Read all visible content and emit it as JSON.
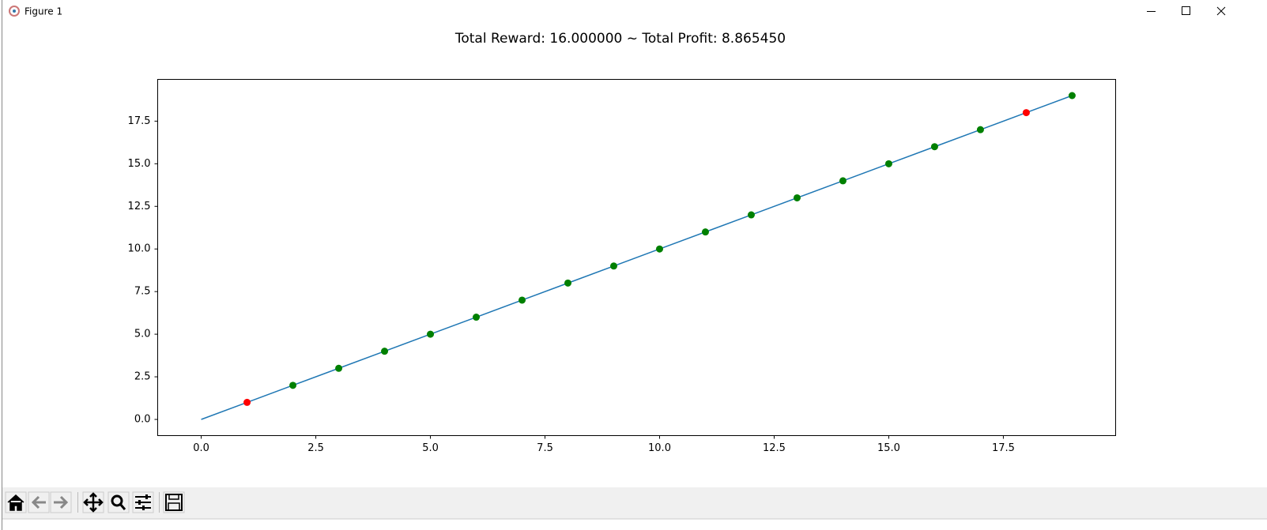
{
  "window": {
    "title": "Figure 1"
  },
  "chart_data": {
    "type": "line",
    "title": "Total Reward: 16.000000 ~ Total Profit: 8.865450",
    "x": [
      0,
      1,
      2,
      3,
      4,
      5,
      6,
      7,
      8,
      9,
      10,
      11,
      12,
      13,
      14,
      15,
      16,
      17,
      18,
      19
    ],
    "series": [
      {
        "color": "#1f77b4",
        "values": [
          0,
          1,
          2,
          3,
          4,
          5,
          6,
          7,
          8,
          9,
          10,
          11,
          12,
          13,
          14,
          15,
          16,
          17,
          18,
          19
        ],
        "point_colors": [
          null,
          "red",
          "green",
          "green",
          "green",
          "green",
          "green",
          "green",
          "green",
          "green",
          "green",
          "green",
          "green",
          "green",
          "green",
          "green",
          "green",
          "green",
          "red",
          "green"
        ]
      }
    ],
    "xlim": [
      -0.95,
      19.95
    ],
    "xticks": [
      {
        "value": 0,
        "label": "0.0"
      },
      2.5,
      {
        "value": 5,
        "label": "5.0"
      },
      7.5,
      {
        "value": 10,
        "label": "10.0"
      },
      12.5,
      {
        "value": 15,
        "label": "15.0"
      },
      17.5
    ],
    "ylim": [
      -0.95,
      19.95
    ],
    "yticks": [
      {
        "value": 0,
        "label": "0.0"
      },
      2.5,
      {
        "value": 5,
        "label": "5.0"
      },
      7.5,
      {
        "value": 10,
        "label": "10.0"
      },
      12.5,
      {
        "value": 15,
        "label": "15.0"
      },
      17.5
    ],
    "grid": false
  }
}
